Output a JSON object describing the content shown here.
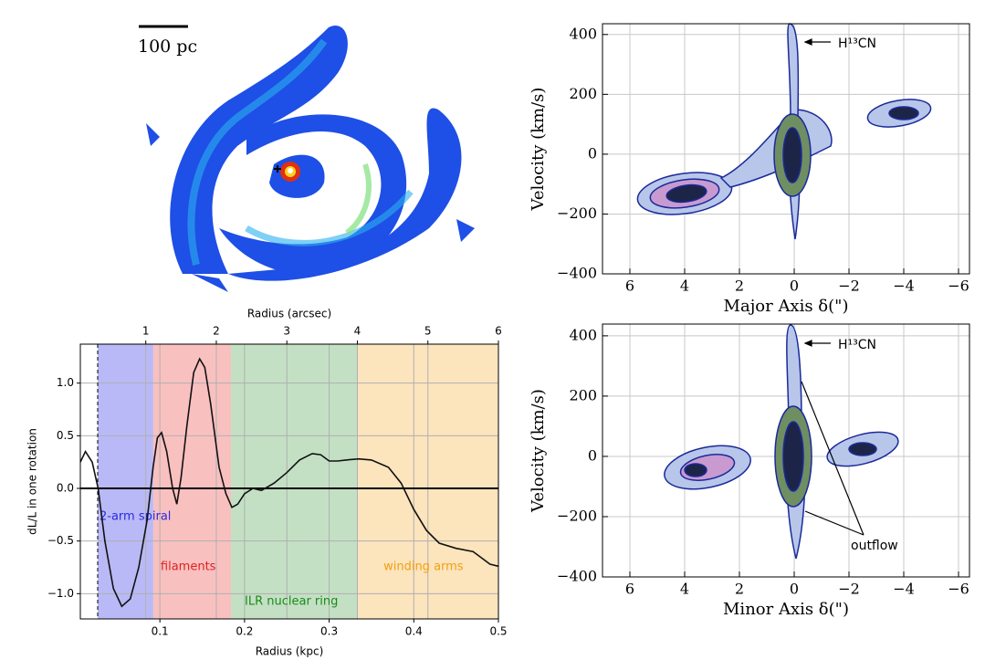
{
  "chart_data": [
    {
      "type": "image",
      "scale_label": "100 pc"
    },
    {
      "type": "line",
      "xlabel": "Radius (kpc)",
      "top_xlabel": "Radius (arcsec)",
      "ylabel": "dL/L in one rotation",
      "x": [
        0.006,
        0.012,
        0.02,
        0.027,
        0.035,
        0.045,
        0.055,
        0.065,
        0.075,
        0.085,
        0.092,
        0.097,
        0.102,
        0.108,
        0.115,
        0.12,
        0.125,
        0.132,
        0.14,
        0.147,
        0.153,
        0.16,
        0.17,
        0.178,
        0.185,
        0.192,
        0.2,
        0.21,
        0.22,
        0.235,
        0.25,
        0.265,
        0.28,
        0.29,
        0.3,
        0.31,
        0.32,
        0.335,
        0.35,
        0.37,
        0.385,
        0.4,
        0.415,
        0.43,
        0.45,
        0.47,
        0.48,
        0.49,
        0.5
      ],
      "values": [
        0.25,
        0.35,
        0.25,
        0,
        -0.5,
        -0.95,
        -1.12,
        -1.05,
        -0.75,
        -0.3,
        0.2,
        0.48,
        0.53,
        0.35,
        0,
        -0.15,
        0.1,
        0.6,
        1.1,
        1.23,
        1.15,
        0.8,
        0.2,
        -0.05,
        -0.18,
        -0.15,
        -0.05,
        0,
        -0.02,
        0.05,
        0.15,
        0.27,
        0.33,
        0.32,
        0.26,
        0.26,
        0.27,
        0.28,
        0.27,
        0.2,
        0.05,
        -0.2,
        -0.4,
        -0.52,
        -0.57,
        -0.6,
        -0.66,
        -0.72,
        -0.74
      ],
      "color": "#111111",
      "xlim": [
        0.006,
        0.5
      ],
      "xticks": [
        0.1,
        0.2,
        0.3,
        0.4,
        0.5
      ],
      "ylim": [
        -1.24,
        1.37
      ],
      "yticks": [
        {
          "value": -1,
          "label": "−1.0"
        },
        {
          "value": -0.5,
          "label": "−0.5"
        },
        {
          "value": 0,
          "label": "0.0"
        },
        0.5,
        {
          "value": 1,
          "label": "1.0"
        }
      ],
      "top_xlim": [
        0.072,
        6
      ],
      "top_xticks": [
        1,
        2,
        3,
        4,
        5,
        6
      ],
      "hline": 0,
      "vline": 0.0265,
      "grid": true,
      "regions": [
        {
          "label": "2-arm spiral",
          "x0": 0.0265,
          "x1": 0.0922,
          "color": "#b9b9f7",
          "text_color": "#2a2ae0"
        },
        {
          "label": "filaments",
          "x0": 0.0922,
          "x1": 0.184,
          "color": "#f9c0c0",
          "text_color": "#e02020"
        },
        {
          "label": "ILR nuclear ring",
          "x0": 0.184,
          "x1": 0.334,
          "color": "#c4e0c4",
          "text_color": "#1a8a1a"
        },
        {
          "label": "winding arms",
          "x0": 0.334,
          "x1": 0.5,
          "color": "#fce4bd",
          "text_color": "#f0a010"
        }
      ]
    },
    {
      "type": "contour",
      "xlabel": "Major Axis  δ(\")",
      "ylabel": "Velocity (km/s)",
      "xlim": [
        7,
        -6.4
      ],
      "xticks": [
        6,
        4,
        2,
        0,
        {
          "value": -2,
          "label": "−2"
        },
        {
          "value": -4,
          "label": "−4"
        },
        {
          "value": -6,
          "label": "−6"
        }
      ],
      "ylim": [
        -400,
        436
      ],
      "yticks": [
        {
          "value": -400,
          "label": "−400"
        },
        {
          "value": -200,
          "label": "−200"
        },
        0,
        200,
        400
      ],
      "grid": true,
      "annotations": [
        "H¹³CN"
      ]
    },
    {
      "type": "contour",
      "xlabel": "Minor Axis  δ(\")",
      "ylabel": "Velocity (km/s)",
      "xlim": [
        7,
        -6.4
      ],
      "xticks": [
        6,
        4,
        2,
        0,
        {
          "value": -2,
          "label": "−2"
        },
        {
          "value": -4,
          "label": "−4"
        },
        {
          "value": -6,
          "label": "−6"
        }
      ],
      "ylim": [
        -400,
        439
      ],
      "yticks": [
        {
          "value": -400,
          "label": "−400"
        },
        {
          "value": -200,
          "label": "−200"
        },
        0,
        200,
        400
      ],
      "grid": true,
      "annotations": [
        "H¹³CN",
        "outflow"
      ]
    }
  ]
}
